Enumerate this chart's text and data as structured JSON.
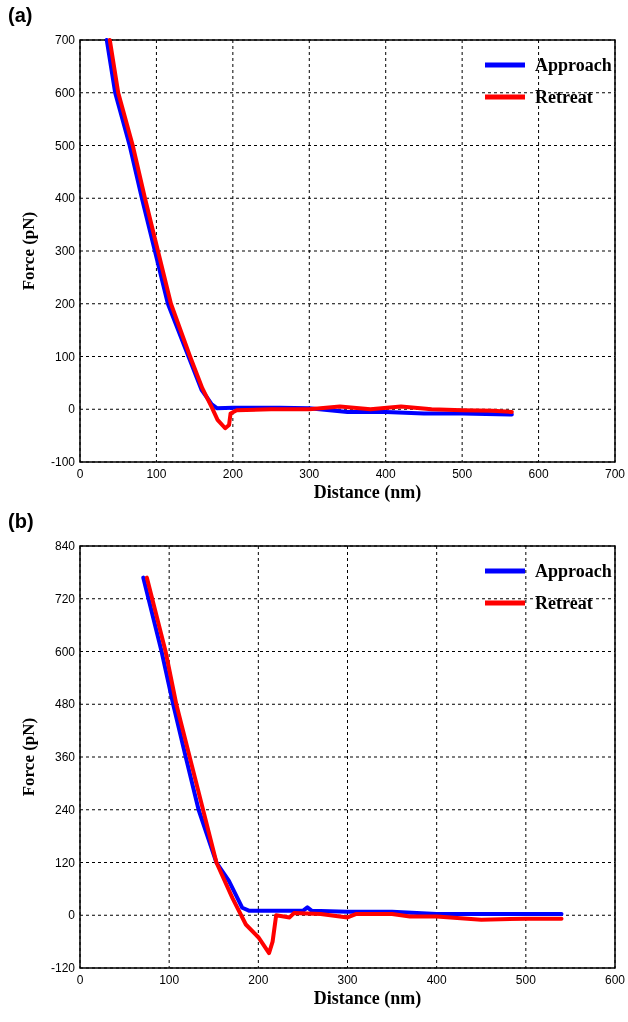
{
  "chart_data": [
    {
      "type": "line",
      "title": "(a)",
      "xlabel": "Distance (nm)",
      "ylabel": "Force (pN)",
      "xlim": [
        0,
        700
      ],
      "ylim": [
        -100,
        700
      ],
      "xticks": [
        0,
        100,
        200,
        300,
        400,
        500,
        600,
        700
      ],
      "yticks": [
        -100,
        0,
        100,
        200,
        300,
        400,
        500,
        600,
        700
      ],
      "grid": true,
      "legend": "top right",
      "marker": "none",
      "line_style": "solid",
      "series": [
        {
          "name": "Approach",
          "color": "#0000ff",
          "x": [
            35,
            46,
            65,
            81,
            98,
            115,
            142,
            159,
            172,
            179,
            200,
            230,
            261,
            300,
            350,
            400,
            450,
            500,
            565
          ],
          "values": [
            700,
            600,
            500,
            400,
            300,
            200,
            100,
            37,
            10,
            2,
            3,
            3,
            3,
            2,
            -5,
            -5,
            -8,
            -8,
            -10
          ]
        },
        {
          "name": "Retreat",
          "color": "#ff0000",
          "x": [
            39,
            50,
            69,
            85,
            102,
            119,
            144,
            160,
            172,
            180,
            190,
            195,
            197,
            205,
            250,
            300,
            340,
            380,
            420,
            460,
            500,
            540,
            565
          ],
          "values": [
            700,
            600,
            500,
            400,
            300,
            200,
            100,
            40,
            5,
            -20,
            -36,
            -30,
            -8,
            -2,
            0,
            0,
            5,
            0,
            5,
            0,
            -2,
            -3,
            -5
          ]
        }
      ]
    },
    {
      "type": "line",
      "title": "(b)",
      "xlabel": "Distance (nm)",
      "ylabel": "Force (pN)",
      "xlim": [
        0,
        600
      ],
      "ylim": [
        -120,
        840
      ],
      "xticks": [
        0,
        100,
        200,
        300,
        400,
        500,
        600
      ],
      "yticks": [
        -120,
        0,
        120,
        240,
        360,
        480,
        600,
        720,
        840
      ],
      "grid": true,
      "legend": "top right",
      "marker": "none",
      "line_style": "solid",
      "series": [
        {
          "name": "Approach",
          "color": "#0000ff",
          "x": [
            71,
            91.5,
            104.5,
            118.6,
            133,
            153,
            167,
            182,
            190,
            220,
            250,
            255,
            260,
            300,
            350,
            400,
            450,
            500,
            540
          ],
          "values": [
            768,
            600,
            480,
            360,
            240,
            120,
            78,
            17,
            10,
            10,
            10,
            18,
            10,
            8,
            8,
            3,
            3,
            3,
            3
          ]
        },
        {
          "name": "Retreat",
          "color": "#ff0000",
          "x": [
            75,
            96,
            108,
            123,
            138,
            153,
            171,
            186,
            200,
            212,
            216,
            220,
            235,
            240,
            270,
            300,
            310,
            350,
            370,
            400,
            450,
            500,
            540
          ],
          "values": [
            768,
            600,
            480,
            360,
            240,
            120,
            39,
            -21,
            -50,
            -86,
            -60,
            0,
            -5,
            5,
            3,
            -5,
            3,
            3,
            -3,
            -3,
            -10,
            -8,
            -8
          ]
        }
      ]
    }
  ]
}
